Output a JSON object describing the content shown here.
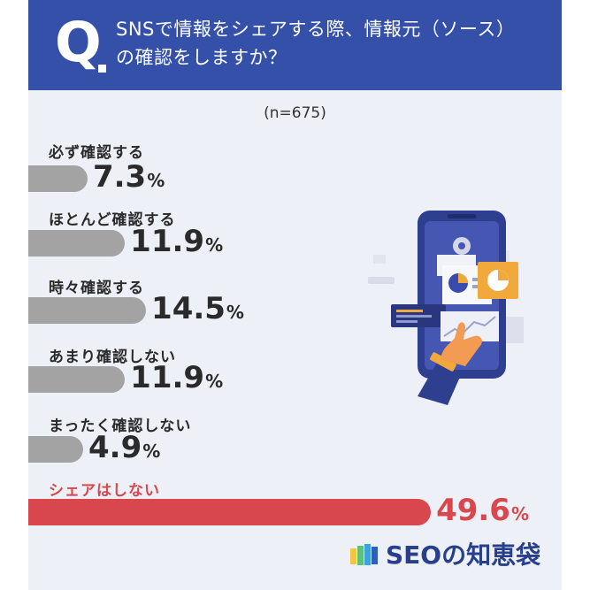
{
  "header": {
    "q": "Q",
    "title_line1": "SNSで情報をシェアする際、情報元（ソース）",
    "title_line2": "の確認をしますか？"
  },
  "sample_label": "(n=675)",
  "percent_sign": "%",
  "colors": {
    "header_bg": "#3550a8",
    "bar_gray": "#a3a3a3",
    "bar_highlight": "#d9474e",
    "panel_bg": "#edf0f6"
  },
  "chart_data": {
    "type": "bar",
    "orientation": "horizontal",
    "categories": [
      "必ず確認する",
      "ほとんど確認する",
      "時々確認する",
      "あまり確認しない",
      "まったく確認しない",
      "シェアはしない"
    ],
    "values": [
      7.3,
      11.9,
      14.5,
      11.9,
      4.9,
      49.6
    ],
    "unit": "%",
    "highlight_index": 5
  },
  "logo": {
    "text": "SEOの知恵袋"
  }
}
